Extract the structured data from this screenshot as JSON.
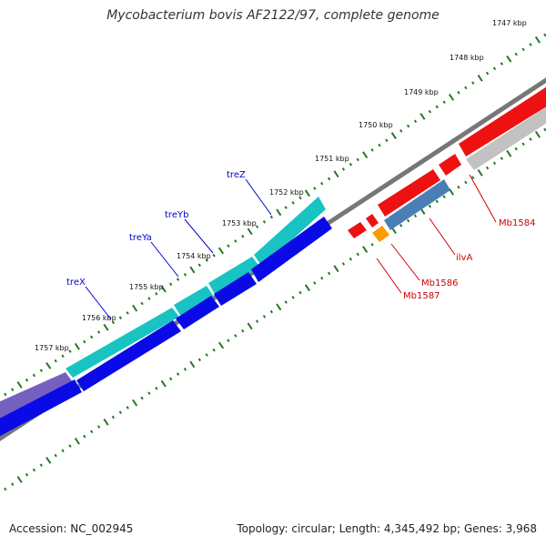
{
  "title": "Mycobacterium bovis AF2122/97, complete genome",
  "footer": {
    "accession": "Accession: NC_002945",
    "summary": "Topology: circular; Length: 4,345,492 bp; Genes: 3,968"
  },
  "colors": {
    "backbone": "#777777",
    "tick": "#1e7d1e",
    "tick_label": "#111111",
    "forward_label": "#0000cc",
    "reverse_label": "#cc0000",
    "cyan": "#19c3c3",
    "blue": "#0a0ae6",
    "purple": "#7560c0",
    "red": "#ee1111",
    "steel": "#4a7fb5",
    "orange": "#ff9900",
    "grey": "#c2c2c2"
  },
  "ticks": [
    {
      "label": "1747 kbp"
    },
    {
      "label": "1748 kbp"
    },
    {
      "label": "1749 kbp"
    },
    {
      "label": "1750 kbp"
    },
    {
      "label": "1751 kbp"
    },
    {
      "label": "1752 kbp"
    },
    {
      "label": "1753 kbp"
    },
    {
      "label": "1754 kbp"
    },
    {
      "label": "1755 kbp"
    },
    {
      "label": "1756 kbp"
    },
    {
      "label": "1757 kbp"
    }
  ],
  "forward_genes": [
    {
      "label": "treZ"
    },
    {
      "label": "treYb"
    },
    {
      "label": "treYa"
    },
    {
      "label": "treX"
    }
  ],
  "reverse_genes": [
    {
      "label": "Mb1584"
    },
    {
      "label": "ilvA"
    },
    {
      "label": "Mb1586"
    },
    {
      "label": "Mb1587"
    }
  ]
}
